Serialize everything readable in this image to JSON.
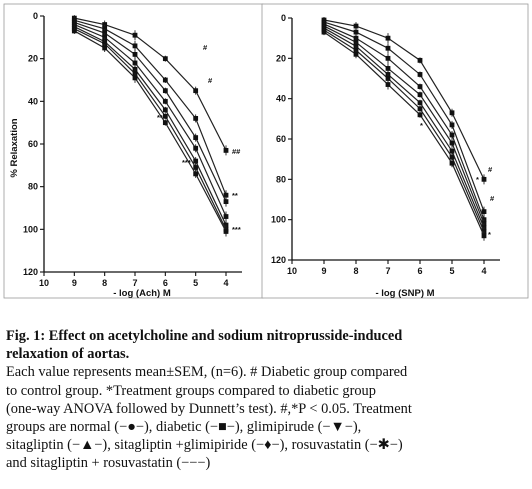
{
  "chart_data": [
    {
      "type": "line",
      "panel": "left",
      "xlabel": "- log (Ach) M",
      "ylabel": "% Relaxation",
      "xlim": [
        10,
        3.5
      ],
      "ylim": [
        120,
        0
      ],
      "x_ticks": [
        10,
        9,
        8,
        7,
        6,
        5,
        4
      ],
      "y_ticks": [
        0,
        20,
        40,
        60,
        80,
        100,
        120
      ],
      "x": [
        9,
        8,
        7,
        6,
        5,
        4
      ],
      "series": [
        {
          "marker": "square",
          "values": [
            1,
            4,
            9,
            20,
            35,
            63
          ]
        },
        {
          "marker": "square",
          "values": [
            2,
            6,
            14,
            30,
            48,
            84
          ]
        },
        {
          "marker": "square",
          "values": [
            3,
            8,
            18,
            35,
            57,
            87
          ]
        },
        {
          "marker": "square",
          "values": [
            4,
            10,
            22,
            40,
            62,
            94
          ]
        },
        {
          "marker": "square",
          "values": [
            5,
            12,
            25,
            44,
            68,
            98
          ]
        },
        {
          "marker": "square",
          "values": [
            6,
            13,
            27,
            47,
            71,
            100
          ]
        },
        {
          "marker": "square",
          "values": [
            7,
            15,
            29,
            50,
            74,
            101
          ]
        }
      ],
      "annotations": [
        "#",
        "#",
        "##",
        "**",
        "***",
        "**",
        "***"
      ]
    },
    {
      "type": "line",
      "panel": "right",
      "xlabel": "- log (SNP) M",
      "ylabel": "",
      "xlim": [
        10,
        3.5
      ],
      "ylim": [
        120,
        0
      ],
      "x_ticks": [
        10,
        9,
        8,
        7,
        6,
        5,
        4
      ],
      "y_ticks": [
        0,
        20,
        40,
        60,
        80,
        100,
        120
      ],
      "x": [
        9,
        8,
        7,
        6,
        5,
        4
      ],
      "series": [
        {
          "marker": "square",
          "values": [
            1,
            4,
            10,
            21,
            47,
            80
          ]
        },
        {
          "marker": "square",
          "values": [
            2,
            7,
            15,
            28,
            53,
            96
          ]
        },
        {
          "marker": "square",
          "values": [
            3,
            10,
            20,
            34,
            58,
            100
          ]
        },
        {
          "marker": "square",
          "values": [
            4,
            12,
            25,
            38,
            62,
            102
          ]
        },
        {
          "marker": "square",
          "values": [
            5,
            14,
            28,
            42,
            66,
            104
          ]
        },
        {
          "marker": "square",
          "values": [
            6,
            16,
            30,
            45,
            69,
            106
          ]
        },
        {
          "marker": "square",
          "values": [
            7,
            18,
            33,
            48,
            72,
            108
          ]
        }
      ],
      "annotations": [
        "#",
        "*",
        "*",
        "#",
        "*"
      ]
    }
  ],
  "caption": {
    "line1": "Fig. 1: Effect on acetylcholine and sodium nitroprusside-induced",
    "line2": "relaxation of aortas.",
    "line3": "Each value represents mean±SEM, (n=6). # Diabetic group compared",
    "line4": "to control group. *Treatment groups compared to diabetic group",
    "line5": "(one-way ANOVA followed by Dunnett’s test). #,*P < 0.05. Treatment",
    "line6": "groups are normal (−●−), diabetic (−■−), glimipirude (−▼−),",
    "line7": "sitagliptin (−▲−), sitagliptin +glimipiride (−♦−), rosuvastatin (−✱−)",
    "line8": "and sitagliptin + rosuvastatin (−−−)"
  }
}
